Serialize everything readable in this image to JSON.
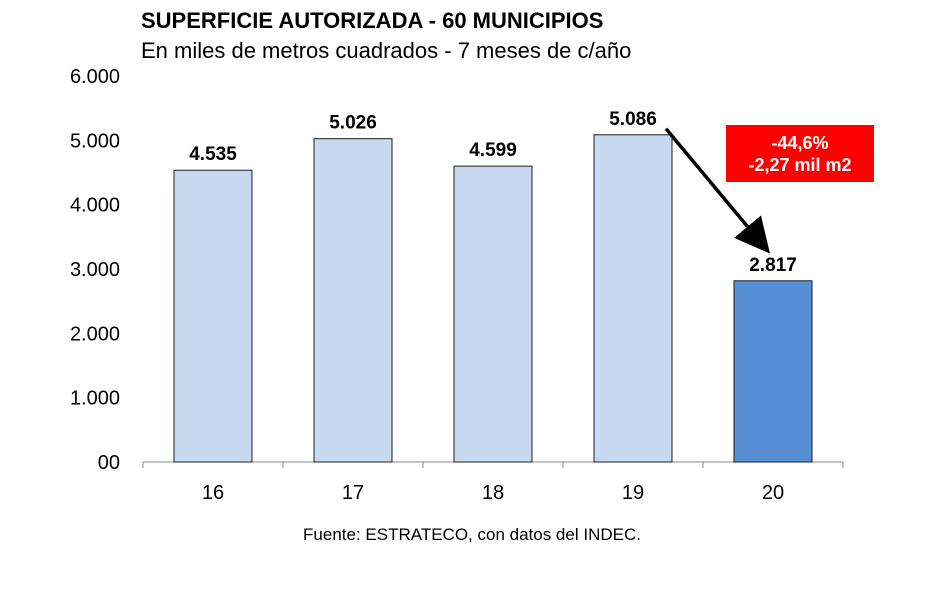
{
  "chart_data": {
    "type": "bar",
    "title": "SUPERFICIE AUTORIZADA - 60 MUNICIPIOS",
    "subtitle": "En miles de metros cuadrados - 7 meses de c/año",
    "categories": [
      "16",
      "17",
      "18",
      "19",
      "20"
    ],
    "values": [
      4535,
      5026,
      4599,
      5086,
      2817
    ],
    "value_labels": [
      "4.535",
      "5.026",
      "4.599",
      "5.086",
      "2.817"
    ],
    "y_ticks": [
      "00",
      "1.000",
      "2.000",
      "3.000",
      "4.000",
      "5.000",
      "6.000"
    ],
    "ylim": [
      0,
      6000
    ],
    "grid": false,
    "legend": "none",
    "colors": {
      "bar_default": "#c6d9f1",
      "bar_highlight": "#558ed5",
      "bar_border": "#1f1f1f",
      "callout_bg": "#ff0000"
    },
    "annotation": {
      "line1": "-44,6%",
      "line2": "-2,27 mil m2"
    },
    "source": "Fuente: ESTRATECO, con datos del INDEC."
  }
}
